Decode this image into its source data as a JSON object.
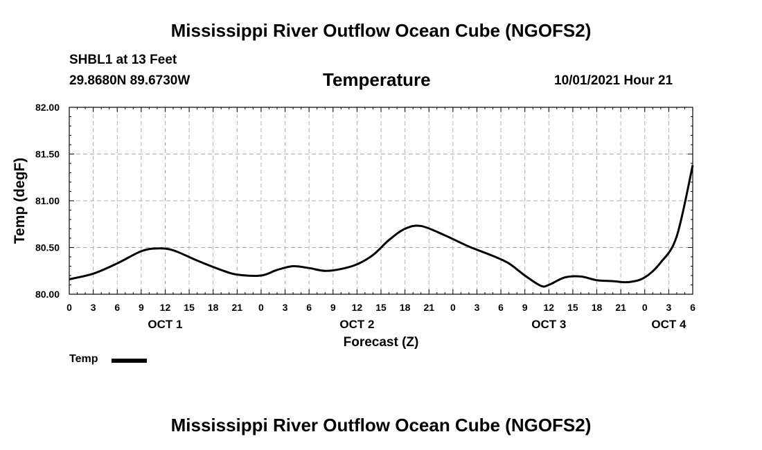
{
  "header": {
    "title": "Mississippi River Outflow Ocean Cube (NGOFS2)",
    "station": "SHBL1 at 13 Feet",
    "coordinates": "29.8680N  89.6730W",
    "variable": "Temperature",
    "datetime": "10/01/2021 Hour 21"
  },
  "footer": {
    "title": "Mississippi River Outflow Ocean Cube (NGOFS2)"
  },
  "legend": {
    "label": "Temp"
  },
  "colors": {
    "line": "#000000",
    "grid": "#b0b0b0",
    "axis": "#000000"
  },
  "chart_data": {
    "type": "line",
    "title": "Temperature",
    "xlabel": "Forecast (Z)",
    "ylabel": "Temp (degF)",
    "x_unit": "hours since 10/01 00Z",
    "xlim": [
      0,
      78
    ],
    "ylim": [
      80.0,
      82.0
    ],
    "x_ticks": [
      0,
      3,
      6,
      9,
      12,
      15,
      18,
      21,
      24,
      27,
      30,
      33,
      36,
      39,
      42,
      45,
      48,
      51,
      54,
      57,
      60,
      63,
      66,
      69,
      72,
      75,
      78
    ],
    "x_tick_labels": [
      "0",
      "3",
      "6",
      "9",
      "12",
      "15",
      "18",
      "21",
      "0",
      "3",
      "6",
      "9",
      "12",
      "15",
      "18",
      "21",
      "0",
      "3",
      "6",
      "9",
      "12",
      "15",
      "18",
      "21",
      "0",
      "3",
      "6"
    ],
    "y_ticks": [
      80.0,
      80.5,
      81.0,
      81.5,
      82.0
    ],
    "y_tick_labels": [
      "80.00",
      "80.50",
      "81.00",
      "81.50",
      "82.00"
    ],
    "day_labels": [
      {
        "label": "OCT 1",
        "x": 12
      },
      {
        "label": "OCT 2",
        "x": 36
      },
      {
        "label": "OCT 3",
        "x": 60
      },
      {
        "label": "OCT 4",
        "x": 75
      }
    ],
    "grid": true,
    "legend_position": "bottom-left",
    "series": [
      {
        "name": "Temp",
        "x": [
          0,
          3,
          6,
          9,
          11,
          13,
          16,
          19,
          21,
          24,
          26,
          28,
          30,
          32,
          34,
          36,
          38,
          40,
          42,
          44,
          47,
          50,
          53,
          55,
          57,
          59,
          60,
          62,
          64,
          66,
          68,
          70,
          72,
          74,
          76,
          78
        ],
        "values": [
          80.16,
          80.22,
          80.33,
          80.46,
          80.49,
          80.47,
          80.36,
          80.26,
          80.21,
          80.2,
          80.26,
          80.3,
          80.28,
          80.25,
          80.27,
          80.32,
          80.42,
          80.58,
          80.7,
          80.73,
          80.63,
          80.51,
          80.41,
          80.33,
          80.2,
          80.09,
          80.1,
          80.18,
          80.19,
          80.15,
          80.14,
          80.13,
          80.18,
          80.34,
          80.62,
          81.38
        ]
      }
    ]
  }
}
